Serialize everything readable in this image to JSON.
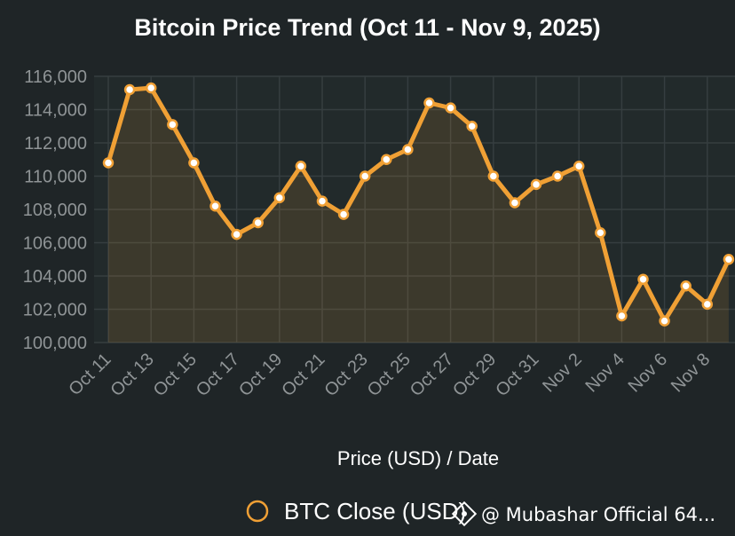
{
  "chart_data": {
    "type": "line",
    "title": "Bitcoin Price Trend (Oct 11 - Nov 9, 2025)",
    "xlabel": "Price (USD) / Date",
    "ylabel": "",
    "ylim": [
      100000,
      116000
    ],
    "yticks": [
      "100,000",
      "102,000",
      "104,000",
      "106,000",
      "108,000",
      "110,000",
      "112,000",
      "114,000",
      "116,000"
    ],
    "ytick_values": [
      100000,
      102000,
      104000,
      106000,
      108000,
      110000,
      112000,
      114000,
      116000
    ],
    "xtick_labels": [
      "Oct 11",
      "Oct 13",
      "Oct 15",
      "Oct 17",
      "Oct 19",
      "Oct 21",
      "Oct 23",
      "Oct 25",
      "Oct 27",
      "Oct 29",
      "Oct 31",
      "Nov 2",
      "Nov 4",
      "Nov 6",
      "Nov 8"
    ],
    "x": [
      "Oct 11",
      "Oct 12",
      "Oct 13",
      "Oct 14",
      "Oct 15",
      "Oct 16",
      "Oct 17",
      "Oct 18",
      "Oct 19",
      "Oct 20",
      "Oct 21",
      "Oct 22",
      "Oct 23",
      "Oct 24",
      "Oct 25",
      "Oct 26",
      "Oct 27",
      "Oct 28",
      "Oct 29",
      "Oct 30",
      "Oct 31",
      "Nov 1",
      "Nov 2",
      "Nov 3",
      "Nov 4",
      "Nov 5",
      "Nov 6",
      "Nov 7",
      "Nov 8",
      "Nov 9"
    ],
    "grid": true,
    "legend_position": "bottom",
    "series": [
      {
        "name": "BTC Close (USD)",
        "color": "#f0a035",
        "values": [
          110800,
          115200,
          115300,
          113100,
          110800,
          108200,
          106500,
          107200,
          108700,
          110600,
          108500,
          107700,
          110000,
          111000,
          111600,
          114400,
          114100,
          113000,
          110000,
          108400,
          109500,
          110000,
          110600,
          106600,
          101600,
          103800,
          101300,
          103400,
          102300,
          105000
        ]
      }
    ]
  },
  "watermark": {
    "text": "@ Mubashar Official 64..."
  }
}
